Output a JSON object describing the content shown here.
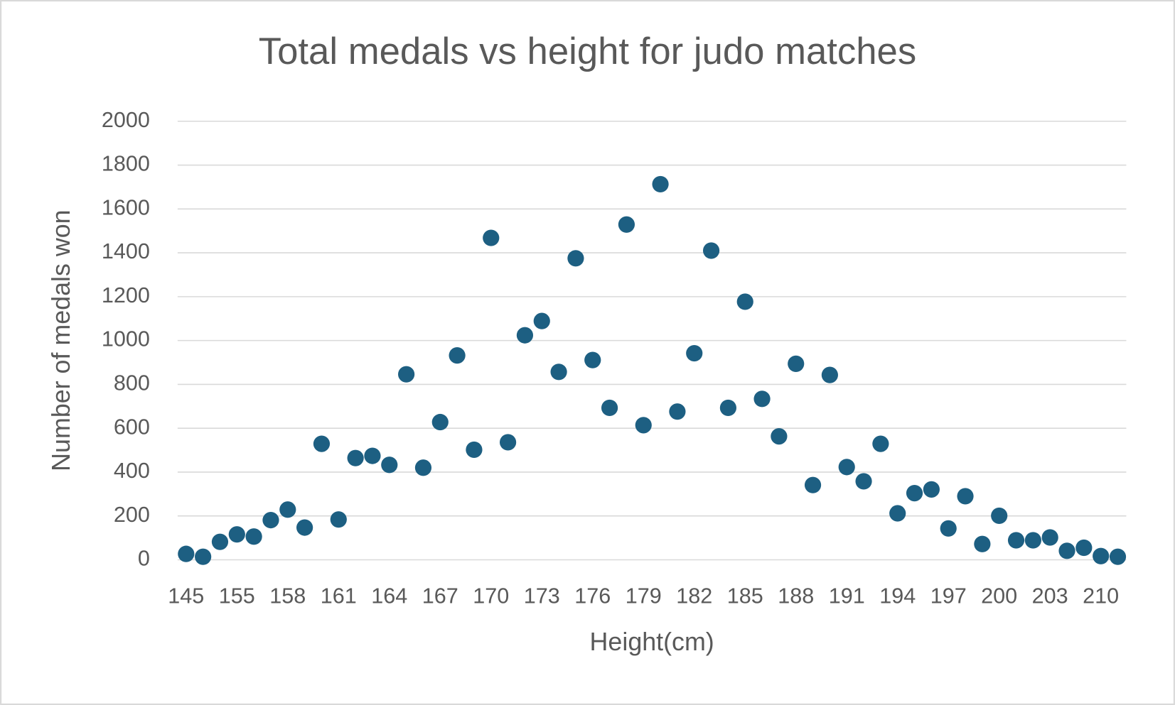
{
  "chart_data": {
    "type": "scatter",
    "title": "Total medals vs height for judo matches",
    "x_label": "Height(cm)",
    "y_label": "Number of medals won",
    "categories": [
      145,
      null,
      null,
      155,
      null,
      null,
      158,
      null,
      null,
      161,
      null,
      null,
      164,
      null,
      null,
      167,
      null,
      null,
      170,
      null,
      null,
      173,
      null,
      null,
      176,
      null,
      null,
      179,
      null,
      null,
      182,
      null,
      null,
      185,
      null,
      null,
      188,
      null,
      null,
      191,
      null,
      null,
      194,
      null,
      null,
      197,
      null,
      null,
      200,
      null,
      null,
      203,
      null,
      null,
      210,
      null
    ],
    "series": [
      {
        "name": "Total medals",
        "color": "#1d5f82",
        "values": [
          27,
          14,
          82,
          116,
          106,
          181,
          229,
          147,
          529,
          184,
          464,
          474,
          433,
          846,
          420,
          628,
          932,
          502,
          1468,
          536,
          1024,
          1089,
          857,
          1375,
          911,
          693,
          1529,
          614,
          1713,
          676,
          942,
          1410,
          693,
          1177,
          734,
          563,
          894,
          341,
          843,
          423,
          358,
          529,
          212,
          304,
          321,
          143,
          290,
          72,
          201,
          89,
          89,
          102,
          41,
          55,
          17,
          14
        ]
      }
    ],
    "ylim": [
      0,
      2000
    ],
    "yticks": [
      0,
      200,
      400,
      600,
      800,
      1000,
      1200,
      1400,
      1600,
      1800,
      2000
    ],
    "grid": true
  }
}
